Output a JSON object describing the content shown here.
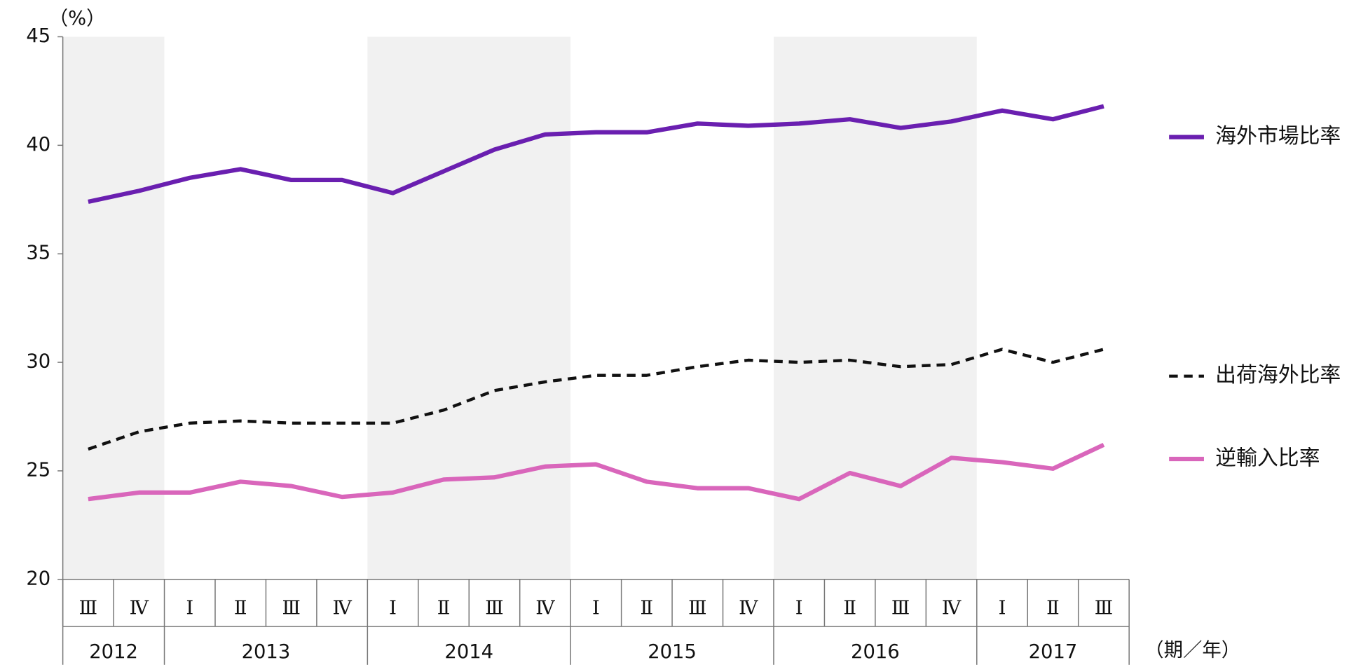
{
  "chart_data": {
    "type": "line",
    "y_unit_label": "（%）",
    "x_label": "（期／年）",
    "categories": [
      "Ⅲ",
      "Ⅳ",
      "Ⅰ",
      "Ⅱ",
      "Ⅲ",
      "Ⅳ",
      "Ⅰ",
      "Ⅱ",
      "Ⅲ",
      "Ⅳ",
      "Ⅰ",
      "Ⅱ",
      "Ⅲ",
      "Ⅳ",
      "Ⅰ",
      "Ⅱ",
      "Ⅲ",
      "Ⅳ",
      "Ⅰ",
      "Ⅱ",
      "Ⅲ"
    ],
    "years": [
      "2012",
      "2013",
      "2014",
      "2015",
      "2016",
      "2017"
    ],
    "series": [
      {
        "name": "海外市場比率",
        "color": "#6a1fb0",
        "line_style": "solid",
        "values": [
          37.4,
          37.9,
          38.5,
          38.9,
          38.4,
          38.4,
          37.8,
          38.8,
          39.8,
          40.5,
          40.6,
          40.6,
          41.0,
          40.9,
          41.0,
          41.2,
          40.8,
          41.1,
          41.6,
          41.2,
          41.8
        ]
      },
      {
        "name": "出荷海外比率",
        "color": "#111111",
        "line_style": "dashed",
        "values": [
          26.0,
          26.8,
          27.2,
          27.3,
          27.2,
          27.2,
          27.2,
          27.8,
          28.7,
          29.1,
          29.4,
          29.4,
          29.8,
          30.1,
          30.0,
          30.1,
          29.8,
          29.9,
          30.6,
          30.0,
          30.6
        ]
      },
      {
        "name": "逆輸入比率",
        "color": "#d966bb",
        "line_style": "solid",
        "values": [
          23.7,
          24.0,
          24.0,
          24.5,
          24.3,
          23.8,
          24.0,
          24.6,
          24.7,
          25.2,
          25.3,
          24.5,
          24.2,
          24.2,
          23.7,
          24.9,
          24.3,
          25.6,
          25.4,
          25.1,
          26.2
        ]
      }
    ],
    "ylim": [
      20,
      45
    ],
    "yticks": [
      20,
      25,
      30,
      35,
      40,
      45
    ],
    "grid": false,
    "legend": "right"
  }
}
